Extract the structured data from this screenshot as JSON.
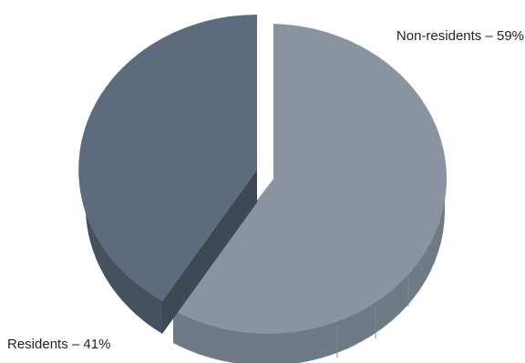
{
  "chart_data": {
    "type": "pie",
    "style": "3d-exploded",
    "categories": [
      "Non-residents",
      "Residents"
    ],
    "values": [
      59,
      41
    ],
    "unit": "%",
    "labels": [
      "Non-residents – 59%",
      "Residents – 41%"
    ],
    "colors": {
      "non_residents_top": "#8994a0",
      "non_residents_side": "#6f7a87",
      "residents_top": "#5d6b7f",
      "residents_side": "#46515f"
    },
    "exploded_slice": "Residents",
    "legend": "none"
  }
}
